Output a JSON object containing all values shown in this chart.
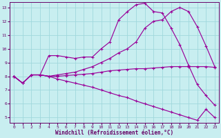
{
  "xlabel": "Windchill (Refroidissement éolien,°C)",
  "background_color": "#c8eef0",
  "grid_color": "#a0d8dc",
  "line_color": "#990099",
  "tick_color": "#660066",
  "xlim_min": -0.5,
  "xlim_max": 23.5,
  "ylim_min": 4.6,
  "ylim_max": 13.4,
  "xticks": [
    0,
    1,
    2,
    3,
    4,
    5,
    6,
    7,
    8,
    9,
    10,
    11,
    12,
    13,
    14,
    15,
    16,
    17,
    18,
    19,
    20,
    21,
    22,
    23
  ],
  "yticks": [
    5,
    6,
    7,
    8,
    9,
    10,
    11,
    12,
    13
  ],
  "x": [
    0,
    1,
    2,
    3,
    4,
    5,
    6,
    7,
    8,
    9,
    10,
    11,
    12,
    13,
    14,
    15,
    16,
    17,
    18,
    19,
    20,
    21,
    22,
    23
  ],
  "line1_y": [
    8.0,
    7.5,
    8.1,
    8.1,
    9.5,
    9.5,
    9.4,
    9.3,
    9.4,
    9.4,
    10.0,
    10.5,
    12.1,
    12.7,
    13.2,
    13.3,
    12.7,
    12.6,
    11.5,
    10.3,
    8.8,
    7.4,
    6.6,
    5.9
  ],
  "line2_y": [
    8.0,
    7.5,
    8.1,
    8.1,
    8.0,
    8.1,
    8.2,
    8.3,
    8.5,
    8.7,
    9.0,
    9.3,
    9.7,
    10.0,
    10.5,
    11.5,
    12.0,
    12.1,
    12.7,
    13.0,
    12.7,
    11.6,
    10.2,
    8.7
  ],
  "line3_y": [
    8.0,
    7.5,
    8.1,
    8.1,
    8.0,
    8.0,
    8.05,
    8.1,
    8.15,
    8.2,
    8.3,
    8.4,
    8.45,
    8.5,
    8.55,
    8.55,
    8.6,
    8.65,
    8.7,
    8.7,
    8.7,
    8.7,
    8.7,
    8.65
  ],
  "line4_y": [
    8.0,
    7.5,
    8.1,
    8.1,
    8.0,
    7.8,
    7.65,
    7.5,
    7.35,
    7.2,
    7.0,
    6.8,
    6.6,
    6.45,
    6.2,
    6.0,
    5.8,
    5.6,
    5.4,
    5.2,
    5.0,
    4.8,
    5.6,
    5.0
  ]
}
